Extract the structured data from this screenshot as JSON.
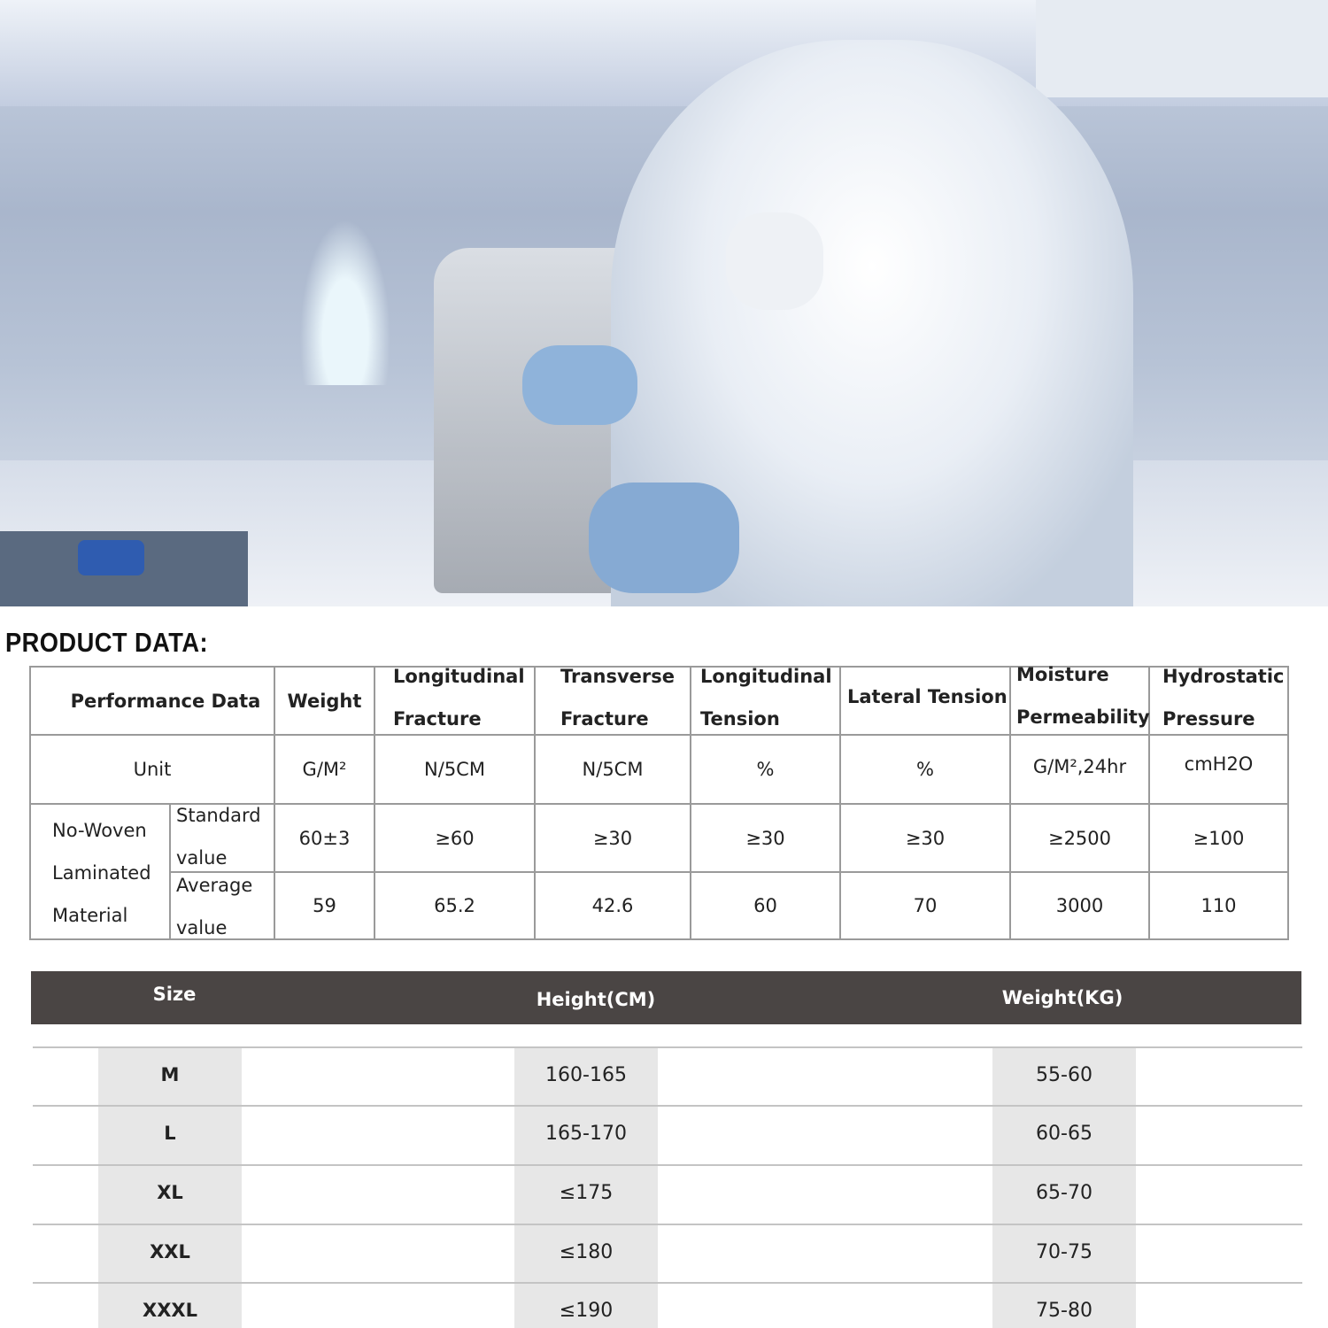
{
  "title": "PRODUCT DATA:",
  "performance_table": {
    "header": [
      "Performance Data",
      "Weight",
      "Longitudinal Fracture",
      "Transverse Fracture",
      "Longitudinal Tension",
      "Lateral Tension",
      "Moisture Permeability",
      "Hydrostatic Pressure"
    ],
    "unit_label": "Unit",
    "units": [
      "G/M²",
      "N/5CM",
      "N/5CM",
      "%",
      "%",
      "G/M²,24hr",
      "cmH2O"
    ],
    "material": "No-Woven Laminated Material",
    "rows": [
      {
        "label": "Standard value",
        "values": [
          "60±3",
          "≥60",
          "≥30",
          "≥30",
          "≥30",
          "≥2500",
          "≥100"
        ]
      },
      {
        "label": "Average value",
        "values": [
          "59",
          "65.2",
          "42.6",
          "60",
          "70",
          "3000",
          "110"
        ]
      }
    ]
  },
  "size_table": {
    "header": [
      "Size",
      "Height(CM)",
      "Weight(KG)"
    ],
    "rows": [
      [
        "M",
        "160-165",
        "55-60"
      ],
      [
        "L",
        "165-170",
        "60-65"
      ],
      [
        "XL",
        "≤175",
        "65-70"
      ],
      [
        "XXL",
        "≤180",
        "70-75"
      ],
      [
        "XXXL",
        "≤190",
        "75-80"
      ]
    ]
  }
}
